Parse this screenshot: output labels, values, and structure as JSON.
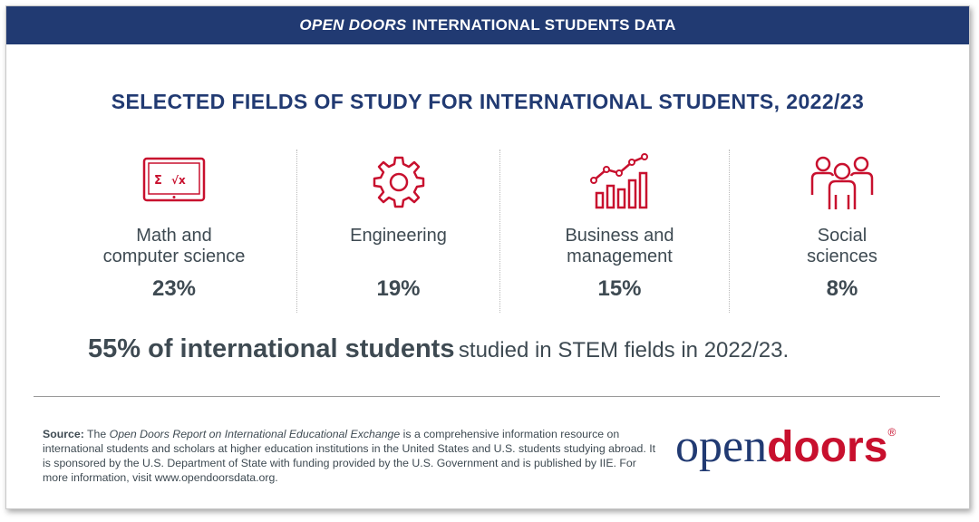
{
  "banner": {
    "emphasis": "OPEN DOORS",
    "rest": "INTERNATIONAL STUDENTS DATA"
  },
  "headline": "SELECTED FIELDS OF STUDY FOR INTERNATIONAL STUDENTS, 2022/23",
  "fields": [
    {
      "icon": "math-laptop-icon",
      "label": "Math and\ncomputer science",
      "percent": "23%"
    },
    {
      "icon": "gear-icon",
      "label": "Engineering",
      "percent": "19%"
    },
    {
      "icon": "growth-chart-icon",
      "label": "Business and\nmanagement",
      "percent": "15%"
    },
    {
      "icon": "people-group-icon",
      "label": "Social\nsciences",
      "percent": "8%"
    }
  ],
  "stem": {
    "bold": "55% of international students",
    "rest": "studied in STEM fields in 2022/23."
  },
  "source": {
    "label": "Source:",
    "pre": "The",
    "italic": "Open Doors Report on International Educational Exchange",
    "post": "is a comprehensive information resource on international students and scholars at higher education institutions in the United States and U.S. students studying abroad. It is sponsored by the U.S. Department of State with funding provided by the U.S. Government and is published by IIE. For more information, visit www.opendoorsdata.org."
  },
  "logo": {
    "part1": "open",
    "part2": "doors",
    "reg": "®"
  },
  "colors": {
    "navy": "#213a72",
    "red": "#c8102e",
    "text": "#3e4a52"
  }
}
